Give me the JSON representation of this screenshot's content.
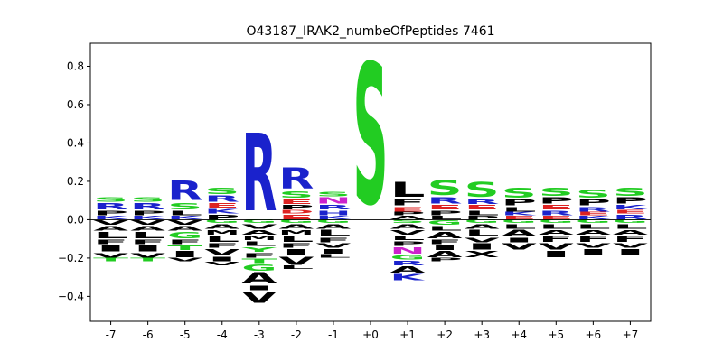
{
  "chart_data": {
    "type": "sequence-logo",
    "title": "O43187_IRAK2_numbeOfPeptides 7461",
    "xlabel": "",
    "ylabel": "",
    "ylim": [
      -0.53,
      0.92
    ],
    "yticks": [
      -0.4,
      -0.2,
      0.0,
      0.2,
      0.4,
      0.6,
      0.8
    ],
    "ytick_labels": [
      "−0.4",
      "−0.2",
      "0.0",
      "0.2",
      "0.4",
      "0.6",
      "0.8"
    ],
    "positions": [
      "-7",
      "-6",
      "-5",
      "-4",
      "-3",
      "-2",
      "-1",
      "+0",
      "+1",
      "+2",
      "+3",
      "+4",
      "+5",
      "+6",
      "+7"
    ],
    "baseline": 0.0,
    "colors": {
      "S": "#22cc22",
      "T": "#22cc22",
      "G": "#22cc22",
      "Y": "#22cc22",
      "C": "#22cc22",
      "R": "#1a22cc",
      "K": "#1a22cc",
      "H": "#1a22cc",
      "E": "#dd2222",
      "D": "#dd2222",
      "N": "#cc22cc",
      "Q": "#cc22cc",
      "P": "#000000",
      "L": "#000000",
      "V": "#000000",
      "A": "#000000",
      "I": "#000000",
      "F": "#000000",
      "M": "#000000",
      "W": "#000000",
      "X": "#000000"
    },
    "stacks": [
      {
        "pos": "-7",
        "up": [
          [
            "K",
            0.02
          ],
          [
            "P",
            0.03
          ],
          [
            "R",
            0.04
          ],
          [
            "S",
            0.03
          ]
        ],
        "down": [
          [
            "V",
            0.03
          ],
          [
            "A",
            0.03
          ],
          [
            "L",
            0.04
          ],
          [
            "F",
            0.03
          ],
          [
            "I",
            0.04
          ],
          [
            "V",
            0.03
          ],
          [
            "T",
            0.02
          ]
        ]
      },
      {
        "pos": "-6",
        "up": [
          [
            "K",
            0.02
          ],
          [
            "P",
            0.03
          ],
          [
            "R",
            0.04
          ],
          [
            "S",
            0.03
          ]
        ],
        "down": [
          [
            "V",
            0.03
          ],
          [
            "A",
            0.03
          ],
          [
            "L",
            0.04
          ],
          [
            "F",
            0.03
          ],
          [
            "I",
            0.04
          ],
          [
            "V",
            0.03
          ],
          [
            "T",
            0.02
          ]
        ]
      },
      {
        "pos": "-5",
        "up": [
          [
            "K",
            0.02
          ],
          [
            "L",
            0.03
          ],
          [
            "S",
            0.04
          ],
          [
            "R",
            0.12
          ]
        ],
        "down": [
          [
            "V",
            0.03
          ],
          [
            "A",
            0.03
          ],
          [
            "G",
            0.04
          ],
          [
            "F",
            0.03
          ],
          [
            "T",
            0.03
          ],
          [
            "I",
            0.04
          ],
          [
            "V",
            0.02
          ]
        ]
      },
      {
        "pos": "-4",
        "up": [
          [
            "P",
            0.03
          ],
          [
            "K",
            0.03
          ],
          [
            "E",
            0.03
          ],
          [
            "R",
            0.04
          ],
          [
            "S",
            0.04
          ]
        ],
        "down": [
          [
            "G",
            0.02
          ],
          [
            "A",
            0.03
          ],
          [
            "M",
            0.03
          ],
          [
            "L",
            0.04
          ],
          [
            "F",
            0.03
          ],
          [
            "V",
            0.04
          ],
          [
            "I",
            0.03
          ],
          [
            "V",
            0.02
          ]
        ]
      },
      {
        "pos": "-3",
        "up": [
          [
            "R",
            0.48
          ]
        ],
        "down": [
          [
            "G",
            0.02
          ],
          [
            "V",
            0.03
          ],
          [
            "A",
            0.03
          ],
          [
            "M",
            0.03
          ],
          [
            "L",
            0.03
          ],
          [
            "Y",
            0.03
          ],
          [
            "F",
            0.03
          ],
          [
            "T",
            0.03
          ],
          [
            "G",
            0.04
          ],
          [
            "A",
            0.07
          ],
          [
            "I",
            0.03
          ],
          [
            "V",
            0.07
          ]
        ]
      },
      {
        "pos": "-2",
        "up": [
          [
            "E",
            0.03
          ],
          [
            "D",
            0.02
          ],
          [
            "P",
            0.03
          ],
          [
            "E",
            0.03
          ],
          [
            "S",
            0.04
          ],
          [
            "R",
            0.13
          ]
        ],
        "down": [
          [
            "G",
            0.02
          ],
          [
            "A",
            0.03
          ],
          [
            "M",
            0.03
          ],
          [
            "L",
            0.04
          ],
          [
            "F",
            0.03
          ],
          [
            "I",
            0.04
          ],
          [
            "V",
            0.05
          ],
          [
            "L",
            0.02
          ]
        ]
      },
      {
        "pos": "-1",
        "up": [
          [
            "K",
            0.02
          ],
          [
            "H",
            0.03
          ],
          [
            "R",
            0.03
          ],
          [
            "N",
            0.04
          ],
          [
            "S",
            0.03
          ]
        ],
        "down": [
          [
            "G",
            0.02
          ],
          [
            "A",
            0.03
          ],
          [
            "L",
            0.04
          ],
          [
            "F",
            0.03
          ],
          [
            "V",
            0.03
          ],
          [
            "I",
            0.03
          ],
          [
            "L",
            0.02
          ]
        ]
      },
      {
        "pos": "+0",
        "up": [
          [
            "S",
            0.87
          ]
        ],
        "down": []
      },
      {
        "pos": "+1",
        "up": [
          [
            "A",
            0.02
          ],
          [
            "P",
            0.02
          ],
          [
            "E",
            0.03
          ],
          [
            "F",
            0.04
          ],
          [
            "L",
            0.09
          ]
        ],
        "down": [
          [
            "S",
            0.02
          ],
          [
            "A",
            0.03
          ],
          [
            "V",
            0.03
          ],
          [
            "L",
            0.03
          ],
          [
            "P",
            0.03
          ],
          [
            "N",
            0.04
          ],
          [
            "G",
            0.03
          ],
          [
            "R",
            0.03
          ],
          [
            "A",
            0.04
          ],
          [
            "K",
            0.04
          ]
        ]
      },
      {
        "pos": "+2",
        "up": [
          [
            "L",
            0.02
          ],
          [
            "P",
            0.03
          ],
          [
            "E",
            0.03
          ],
          [
            "R",
            0.04
          ],
          [
            "S",
            0.09
          ]
        ],
        "down": [
          [
            "G",
            0.03
          ],
          [
            "L",
            0.03
          ],
          [
            "A",
            0.04
          ],
          [
            "F",
            0.03
          ],
          [
            "I",
            0.03
          ],
          [
            "A",
            0.04
          ],
          [
            "P",
            0.02
          ]
        ]
      },
      {
        "pos": "+3",
        "up": [
          [
            "P",
            0.02
          ],
          [
            "L",
            0.03
          ],
          [
            "E",
            0.03
          ],
          [
            "R",
            0.03
          ],
          [
            "S",
            0.09
          ]
        ],
        "down": [
          [
            "G",
            0.02
          ],
          [
            "A",
            0.03
          ],
          [
            "L",
            0.04
          ],
          [
            "V",
            0.03
          ],
          [
            "I",
            0.04
          ],
          [
            "X",
            0.04
          ]
        ]
      },
      {
        "pos": "+4",
        "up": [
          [
            "E",
            0.02
          ],
          [
            "K",
            0.02
          ],
          [
            "L",
            0.03
          ],
          [
            "P",
            0.04
          ],
          [
            "S",
            0.06
          ]
        ],
        "down": [
          [
            "G",
            0.02
          ],
          [
            "L",
            0.03
          ],
          [
            "A",
            0.04
          ],
          [
            "I",
            0.03
          ],
          [
            "V",
            0.04
          ]
        ]
      },
      {
        "pos": "+5",
        "up": [
          [
            "E",
            0.02
          ],
          [
            "R",
            0.03
          ],
          [
            "E",
            0.03
          ],
          [
            "P",
            0.04
          ],
          [
            "S",
            0.05
          ]
        ],
        "down": [
          [
            "G",
            0.02
          ],
          [
            "L",
            0.03
          ],
          [
            "A",
            0.03
          ],
          [
            "F",
            0.04
          ],
          [
            "V",
            0.04
          ],
          [
            "I",
            0.04
          ]
        ]
      },
      {
        "pos": "+6",
        "up": [
          [
            "K",
            0.02
          ],
          [
            "E",
            0.02
          ],
          [
            "R",
            0.03
          ],
          [
            "P",
            0.04
          ],
          [
            "S",
            0.05
          ]
        ],
        "down": [
          [
            "G",
            0.02
          ],
          [
            "L",
            0.03
          ],
          [
            "A",
            0.03
          ],
          [
            "F",
            0.04
          ],
          [
            "V",
            0.03
          ],
          [
            "I",
            0.04
          ]
        ]
      },
      {
        "pos": "+7",
        "up": [
          [
            "R",
            0.03
          ],
          [
            "E",
            0.02
          ],
          [
            "K",
            0.03
          ],
          [
            "P",
            0.04
          ],
          [
            "S",
            0.05
          ]
        ],
        "down": [
          [
            "G",
            0.02
          ],
          [
            "L",
            0.03
          ],
          [
            "A",
            0.03
          ],
          [
            "F",
            0.04
          ],
          [
            "V",
            0.03
          ],
          [
            "I",
            0.04
          ]
        ]
      }
    ],
    "grid": false,
    "legend": "none"
  }
}
